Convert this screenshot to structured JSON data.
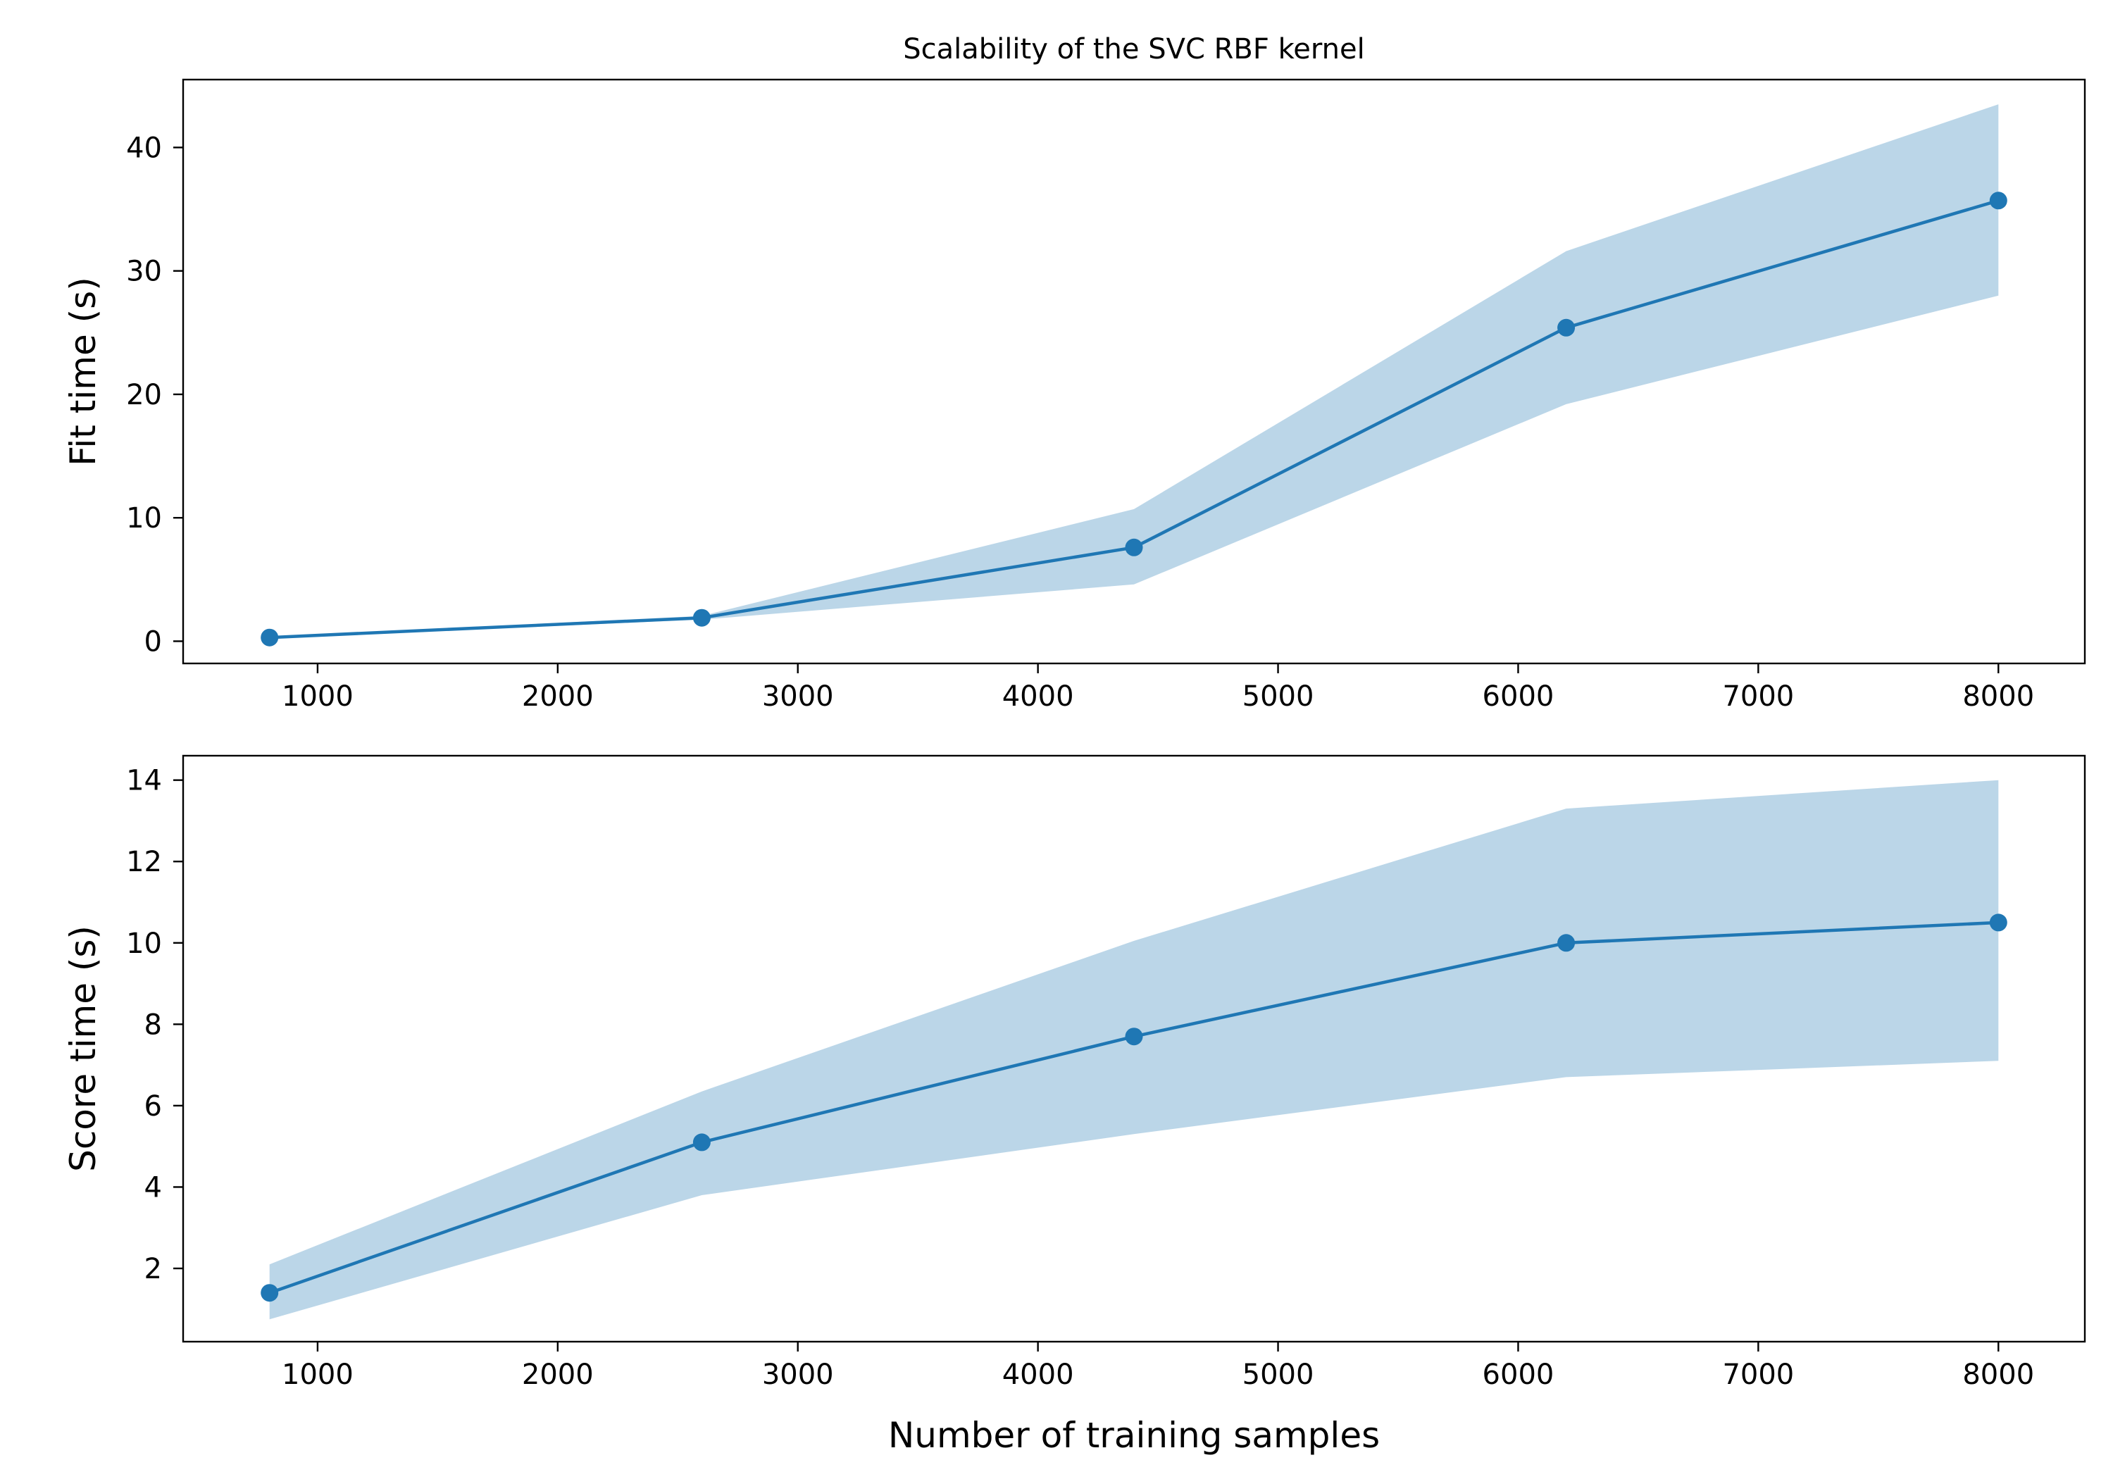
{
  "title": "Scalability of the SVC RBF kernel",
  "colors": {
    "line": "#1f77b4",
    "band": "#1f77b4",
    "axis": "#000000",
    "background": "#ffffff"
  },
  "chart_data": [
    {
      "type": "line",
      "title": "Scalability of the SVC RBF kernel",
      "xlabel": "",
      "ylabel": "Fit time (s)",
      "xlim": [
        440,
        8360
      ],
      "ylim": [
        -1.8,
        45.5
      ],
      "xticks": [
        1000,
        2000,
        3000,
        4000,
        5000,
        6000,
        7000,
        8000
      ],
      "yticks": [
        0,
        10,
        20,
        30,
        40
      ],
      "grid": false,
      "x": [
        800,
        2600,
        4400,
        6200,
        8000
      ],
      "y": [
        0.3,
        1.9,
        7.6,
        25.4,
        35.7
      ],
      "band_lower": [
        0.25,
        1.75,
        4.6,
        19.2,
        28.0
      ],
      "band_upper": [
        0.35,
        2.05,
        10.7,
        31.6,
        43.5
      ]
    },
    {
      "type": "line",
      "title": "",
      "xlabel": "Number of training samples",
      "ylabel": "Score time (s)",
      "xlim": [
        440,
        8360
      ],
      "ylim": [
        0.2,
        14.6
      ],
      "xticks": [
        1000,
        2000,
        3000,
        4000,
        5000,
        6000,
        7000,
        8000
      ],
      "yticks": [
        2,
        4,
        6,
        8,
        10,
        12,
        14
      ],
      "grid": false,
      "x": [
        800,
        2600,
        4400,
        6200,
        8000
      ],
      "y": [
        1.4,
        5.1,
        7.7,
        10.0,
        10.5
      ],
      "band_lower": [
        0.75,
        3.8,
        5.3,
        6.7,
        7.1
      ],
      "band_upper": [
        2.1,
        6.35,
        10.05,
        13.3,
        14.0
      ]
    }
  ]
}
